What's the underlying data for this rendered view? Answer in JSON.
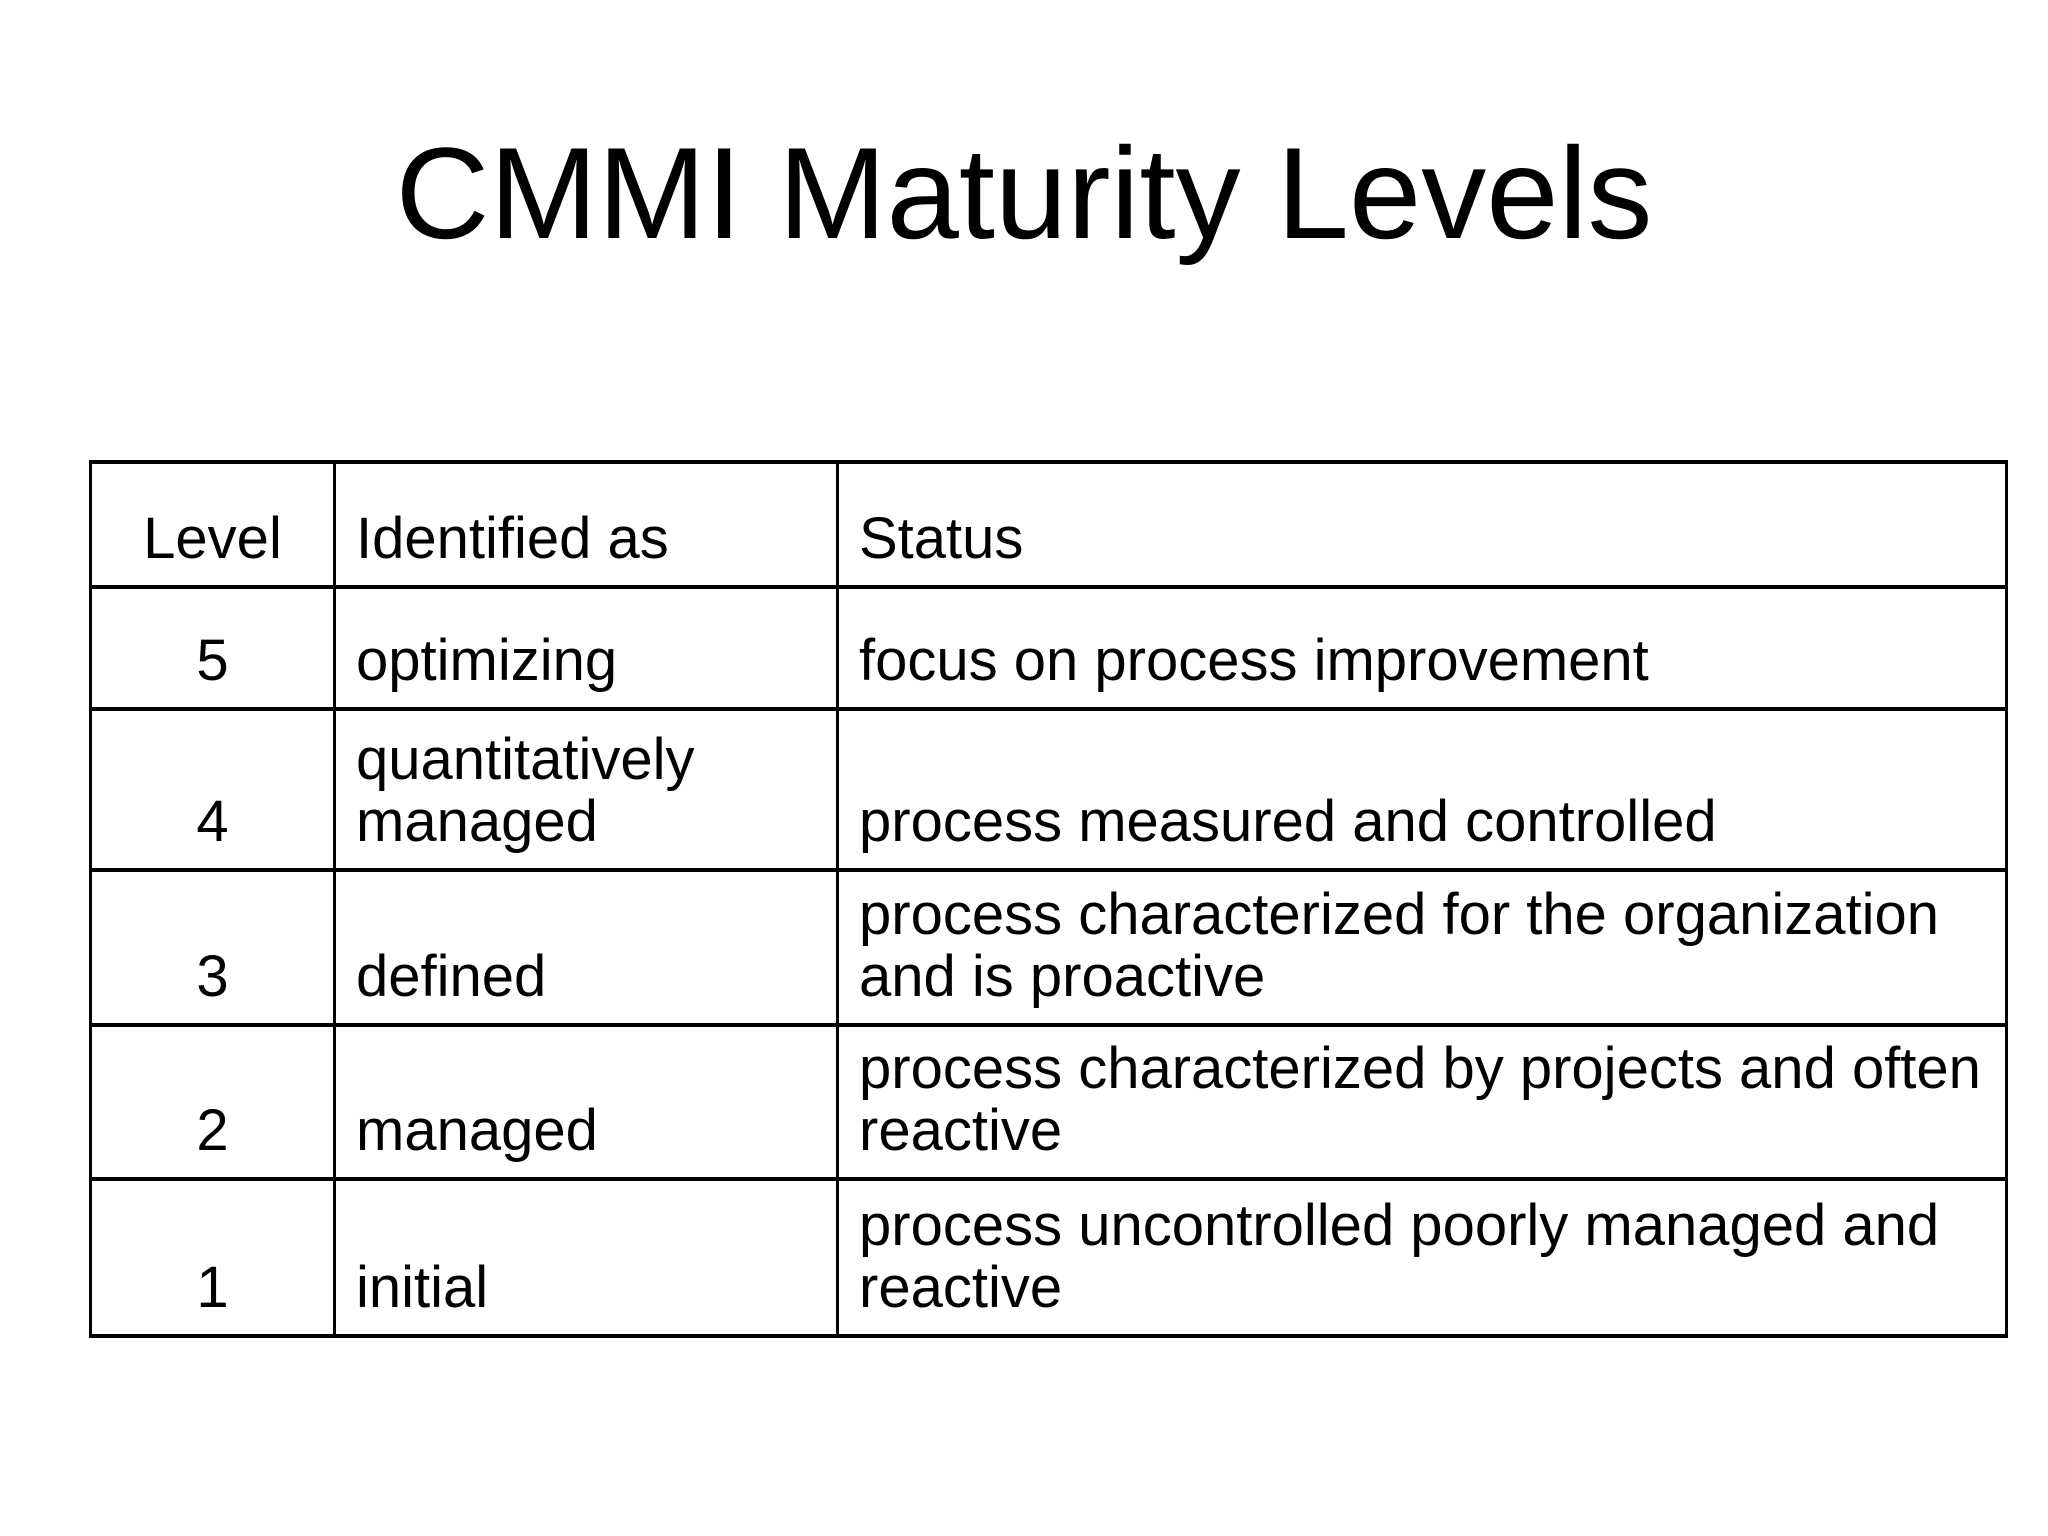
{
  "slide": {
    "title": "CMMI Maturity Levels",
    "background_color": "#ffffff",
    "text_color": "#000000",
    "table_border_color": "#000000"
  },
  "table": {
    "columns": [
      "Level",
      "Identified as",
      "Status"
    ],
    "rows": [
      {
        "level": "5",
        "identified_as": "optimizing",
        "status": "focus on process improvement"
      },
      {
        "level": "4",
        "identified_as": "quantitatively managed",
        "status": "process measured and controlled"
      },
      {
        "level": "3",
        "identified_as": "defined",
        "status": "process characterized for the organization and is proactive"
      },
      {
        "level": "2",
        "identified_as": "managed",
        "status": "process characterized by projects and often reactive"
      },
      {
        "level": "1",
        "identified_as": "initial",
        "status": "process uncontrolled poorly managed and reactive"
      }
    ]
  }
}
